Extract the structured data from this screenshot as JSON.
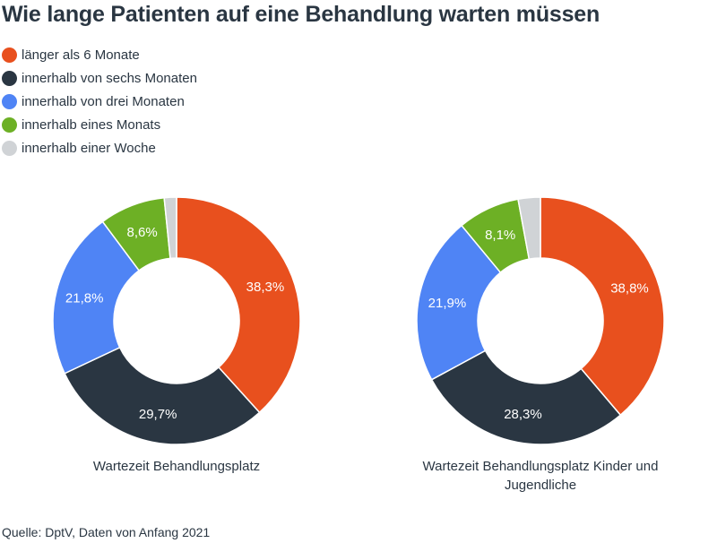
{
  "title": "Wie lange Patienten auf eine Behandlung warten müssen",
  "legend": [
    {
      "label": "länger als 6 Monate",
      "color": "#e8501e"
    },
    {
      "label": "innerhalb von sechs Monaten",
      "color": "#2a3642"
    },
    {
      "label": "innerhalb von drei Monaten",
      "color": "#4f84f5"
    },
    {
      "label": "innerhalb eines Monats",
      "color": "#6db025"
    },
    {
      "label": "innerhalb einer Woche",
      "color": "#d0d3d6"
    }
  ],
  "chart_data": [
    {
      "type": "pie",
      "donut": true,
      "title": "Wartezeit Behandlungsplatz",
      "categories": [
        "länger als 6 Monate",
        "innerhalb von sechs Monaten",
        "innerhalb von drei Monaten",
        "innerhalb eines Monats",
        "innerhalb einer Woche"
      ],
      "values": [
        38.3,
        29.7,
        21.8,
        8.6,
        1.6
      ],
      "labels": [
        "38,3%",
        "29,7%",
        "21,8%",
        "8,6%",
        ""
      ]
    },
    {
      "type": "pie",
      "donut": true,
      "title": "Wartezeit Behandlungsplatz Kinder und Jugendliche",
      "categories": [
        "länger als 6 Monate",
        "innerhalb von sechs Monaten",
        "innerhalb von drei Monaten",
        "innerhalb eines Monats",
        "innerhalb einer Woche"
      ],
      "values": [
        38.8,
        28.3,
        21.9,
        8.1,
        2.9
      ],
      "labels": [
        "38,8%",
        "28,3%",
        "21,9%",
        "8,1%",
        ""
      ]
    }
  ],
  "source": "Quelle: DptV, Daten von Anfang 2021"
}
